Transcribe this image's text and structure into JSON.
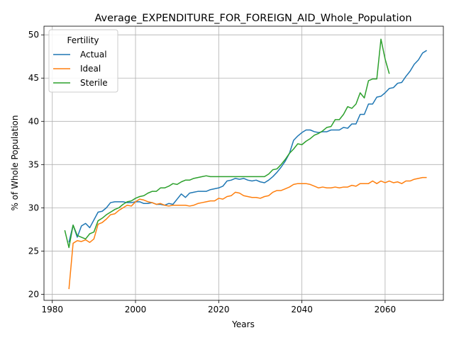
{
  "chart_data": {
    "type": "line",
    "title": "Average_EXPENDITURE_FOR_FOREIGN_AID_Whole_Population",
    "xlabel": "Years",
    "ylabel": "% of Whole Population",
    "xlim": [
      1978,
      2074
    ],
    "ylim": [
      19.3,
      51.0
    ],
    "xticks": [
      1980,
      2000,
      2020,
      2040,
      2060
    ],
    "yticks": [
      20,
      25,
      30,
      35,
      40,
      45,
      50
    ],
    "grid": true,
    "legend": {
      "title": "Fertility",
      "placement": "top-left"
    },
    "series": [
      {
        "name": "Actual",
        "color": "#1f77b4",
        "points": [
          [
            1984,
            26.0
          ],
          [
            1985,
            28.0
          ],
          [
            1986,
            26.6
          ],
          [
            1987,
            27.9
          ],
          [
            1988,
            28.2
          ],
          [
            1989,
            27.7
          ],
          [
            1990,
            28.6
          ],
          [
            1991,
            29.5
          ],
          [
            1992,
            29.6
          ],
          [
            1993,
            30.0
          ],
          [
            1994,
            30.6
          ],
          [
            1995,
            30.7
          ],
          [
            1996,
            30.7
          ],
          [
            1997,
            30.7
          ],
          [
            1998,
            30.6
          ],
          [
            1999,
            30.6
          ],
          [
            2000,
            30.7
          ],
          [
            2001,
            30.7
          ],
          [
            2002,
            30.5
          ],
          [
            2003,
            30.5
          ],
          [
            2004,
            30.6
          ],
          [
            2005,
            30.4
          ],
          [
            2006,
            30.4
          ],
          [
            2007,
            30.3
          ],
          [
            2008,
            30.5
          ],
          [
            2009,
            30.4
          ],
          [
            2010,
            31.0
          ],
          [
            2011,
            31.6
          ],
          [
            2012,
            31.2
          ],
          [
            2013,
            31.7
          ],
          [
            2014,
            31.8
          ],
          [
            2015,
            31.9
          ],
          [
            2016,
            31.9
          ],
          [
            2017,
            31.9
          ],
          [
            2018,
            32.1
          ],
          [
            2019,
            32.2
          ],
          [
            2020,
            32.3
          ],
          [
            2021,
            32.5
          ],
          [
            2022,
            33.1
          ],
          [
            2023,
            33.2
          ],
          [
            2024,
            33.4
          ],
          [
            2025,
            33.3
          ],
          [
            2026,
            33.4
          ],
          [
            2027,
            33.2
          ],
          [
            2028,
            33.1
          ],
          [
            2029,
            33.2
          ],
          [
            2030,
            33.0
          ],
          [
            2031,
            32.9
          ],
          [
            2032,
            33.2
          ],
          [
            2033,
            33.6
          ],
          [
            2034,
            34.1
          ],
          [
            2035,
            34.7
          ],
          [
            2036,
            35.4
          ],
          [
            2037,
            36.3
          ],
          [
            2038,
            37.8
          ],
          [
            2039,
            38.3
          ],
          [
            2040,
            38.7
          ],
          [
            2041,
            39.0
          ],
          [
            2042,
            39.0
          ],
          [
            2043,
            38.8
          ],
          [
            2044,
            38.7
          ],
          [
            2045,
            38.8
          ],
          [
            2046,
            38.8
          ],
          [
            2047,
            39.0
          ],
          [
            2048,
            39.0
          ],
          [
            2049,
            39.0
          ],
          [
            2050,
            39.3
          ],
          [
            2051,
            39.2
          ],
          [
            2052,
            39.7
          ],
          [
            2053,
            39.7
          ],
          [
            2054,
            40.8
          ],
          [
            2055,
            40.8
          ],
          [
            2056,
            42.0
          ],
          [
            2057,
            42.0
          ],
          [
            2058,
            42.8
          ],
          [
            2059,
            42.9
          ],
          [
            2060,
            43.3
          ],
          [
            2061,
            43.8
          ],
          [
            2062,
            43.9
          ],
          [
            2063,
            44.4
          ],
          [
            2064,
            44.5
          ],
          [
            2065,
            45.2
          ],
          [
            2066,
            45.8
          ],
          [
            2067,
            46.6
          ],
          [
            2068,
            47.1
          ],
          [
            2069,
            47.9
          ],
          [
            2070,
            48.2
          ]
        ]
      },
      {
        "name": "Ideal",
        "color": "#ff7f0e",
        "points": [
          [
            1984,
            20.6
          ],
          [
            1985,
            25.9
          ],
          [
            1986,
            26.2
          ],
          [
            1987,
            26.1
          ],
          [
            1988,
            26.3
          ],
          [
            1989,
            26.0
          ],
          [
            1990,
            26.4
          ],
          [
            1991,
            28.1
          ],
          [
            1992,
            28.3
          ],
          [
            1993,
            28.7
          ],
          [
            1994,
            29.2
          ],
          [
            1995,
            29.3
          ],
          [
            1996,
            29.7
          ],
          [
            1997,
            30.0
          ],
          [
            1998,
            30.3
          ],
          [
            1999,
            30.2
          ],
          [
            2000,
            30.7
          ],
          [
            2001,
            31.0
          ],
          [
            2002,
            30.9
          ],
          [
            2003,
            30.7
          ],
          [
            2004,
            30.6
          ],
          [
            2005,
            30.4
          ],
          [
            2006,
            30.5
          ],
          [
            2007,
            30.3
          ],
          [
            2008,
            30.2
          ],
          [
            2009,
            30.3
          ],
          [
            2010,
            30.3
          ],
          [
            2011,
            30.3
          ],
          [
            2012,
            30.3
          ],
          [
            2013,
            30.2
          ],
          [
            2014,
            30.3
          ],
          [
            2015,
            30.5
          ],
          [
            2016,
            30.6
          ],
          [
            2017,
            30.7
          ],
          [
            2018,
            30.8
          ],
          [
            2019,
            30.8
          ],
          [
            2020,
            31.1
          ],
          [
            2021,
            31.0
          ],
          [
            2022,
            31.3
          ],
          [
            2023,
            31.4
          ],
          [
            2024,
            31.8
          ],
          [
            2025,
            31.7
          ],
          [
            2026,
            31.4
          ],
          [
            2027,
            31.3
          ],
          [
            2028,
            31.2
          ],
          [
            2029,
            31.2
          ],
          [
            2030,
            31.1
          ],
          [
            2031,
            31.3
          ],
          [
            2032,
            31.4
          ],
          [
            2033,
            31.8
          ],
          [
            2034,
            32.0
          ],
          [
            2035,
            32.0
          ],
          [
            2036,
            32.2
          ],
          [
            2037,
            32.4
          ],
          [
            2038,
            32.7
          ],
          [
            2039,
            32.8
          ],
          [
            2040,
            32.8
          ],
          [
            2041,
            32.8
          ],
          [
            2042,
            32.7
          ],
          [
            2043,
            32.5
          ],
          [
            2044,
            32.3
          ],
          [
            2045,
            32.4
          ],
          [
            2046,
            32.3
          ],
          [
            2047,
            32.3
          ],
          [
            2048,
            32.4
          ],
          [
            2049,
            32.3
          ],
          [
            2050,
            32.4
          ],
          [
            2051,
            32.4
          ],
          [
            2052,
            32.6
          ],
          [
            2053,
            32.5
          ],
          [
            2054,
            32.8
          ],
          [
            2055,
            32.8
          ],
          [
            2056,
            32.8
          ],
          [
            2057,
            33.1
          ],
          [
            2058,
            32.8
          ],
          [
            2059,
            33.1
          ],
          [
            2060,
            32.9
          ],
          [
            2061,
            33.1
          ],
          [
            2062,
            32.9
          ],
          [
            2063,
            33.0
          ],
          [
            2064,
            32.8
          ],
          [
            2065,
            33.1
          ],
          [
            2066,
            33.1
          ],
          [
            2067,
            33.3
          ],
          [
            2068,
            33.4
          ],
          [
            2069,
            33.5
          ],
          [
            2070,
            33.5
          ]
        ]
      },
      {
        "name": "Sterile",
        "color": "#2ca02c",
        "points": [
          [
            1983,
            27.4
          ],
          [
            1984,
            25.4
          ],
          [
            1985,
            28.0
          ],
          [
            1986,
            26.8
          ],
          [
            1987,
            26.6
          ],
          [
            1988,
            26.4
          ],
          [
            1989,
            27.0
          ],
          [
            1990,
            27.2
          ],
          [
            1991,
            28.5
          ],
          [
            1992,
            28.8
          ],
          [
            1993,
            29.2
          ],
          [
            1994,
            29.5
          ],
          [
            1995,
            29.8
          ],
          [
            1996,
            30.0
          ],
          [
            1997,
            30.4
          ],
          [
            1998,
            30.7
          ],
          [
            1999,
            30.8
          ],
          [
            2000,
            31.1
          ],
          [
            2001,
            31.3
          ],
          [
            2002,
            31.4
          ],
          [
            2003,
            31.7
          ],
          [
            2004,
            31.9
          ],
          [
            2005,
            31.9
          ],
          [
            2006,
            32.3
          ],
          [
            2007,
            32.3
          ],
          [
            2008,
            32.5
          ],
          [
            2009,
            32.8
          ],
          [
            2010,
            32.7
          ],
          [
            2011,
            33.0
          ],
          [
            2012,
            33.2
          ],
          [
            2013,
            33.2
          ],
          [
            2014,
            33.4
          ],
          [
            2015,
            33.5
          ],
          [
            2016,
            33.6
          ],
          [
            2017,
            33.7
          ],
          [
            2018,
            33.6
          ],
          [
            2019,
            33.6
          ],
          [
            2020,
            33.6
          ],
          [
            2021,
            33.6
          ],
          [
            2022,
            33.6
          ],
          [
            2023,
            33.6
          ],
          [
            2024,
            33.6
          ],
          [
            2025,
            33.6
          ],
          [
            2026,
            33.6
          ],
          [
            2027,
            33.6
          ],
          [
            2028,
            33.6
          ],
          [
            2029,
            33.6
          ],
          [
            2030,
            33.6
          ],
          [
            2031,
            33.6
          ],
          [
            2032,
            33.9
          ],
          [
            2033,
            34.4
          ],
          [
            2034,
            34.5
          ],
          [
            2035,
            35.0
          ],
          [
            2036,
            35.6
          ],
          [
            2037,
            36.3
          ],
          [
            2038,
            36.8
          ],
          [
            2039,
            37.4
          ],
          [
            2040,
            37.3
          ],
          [
            2041,
            37.7
          ],
          [
            2042,
            38.0
          ],
          [
            2043,
            38.4
          ],
          [
            2044,
            38.6
          ],
          [
            2045,
            38.9
          ],
          [
            2046,
            39.3
          ],
          [
            2047,
            39.4
          ],
          [
            2048,
            40.2
          ],
          [
            2049,
            40.2
          ],
          [
            2050,
            40.8
          ],
          [
            2051,
            41.7
          ],
          [
            2052,
            41.5
          ],
          [
            2053,
            42.0
          ],
          [
            2054,
            43.3
          ],
          [
            2055,
            42.7
          ],
          [
            2056,
            44.7
          ],
          [
            2057,
            44.9
          ],
          [
            2058,
            44.9
          ],
          [
            2059,
            49.5
          ],
          [
            2060,
            47.2
          ],
          [
            2061,
            45.5
          ]
        ]
      }
    ]
  }
}
